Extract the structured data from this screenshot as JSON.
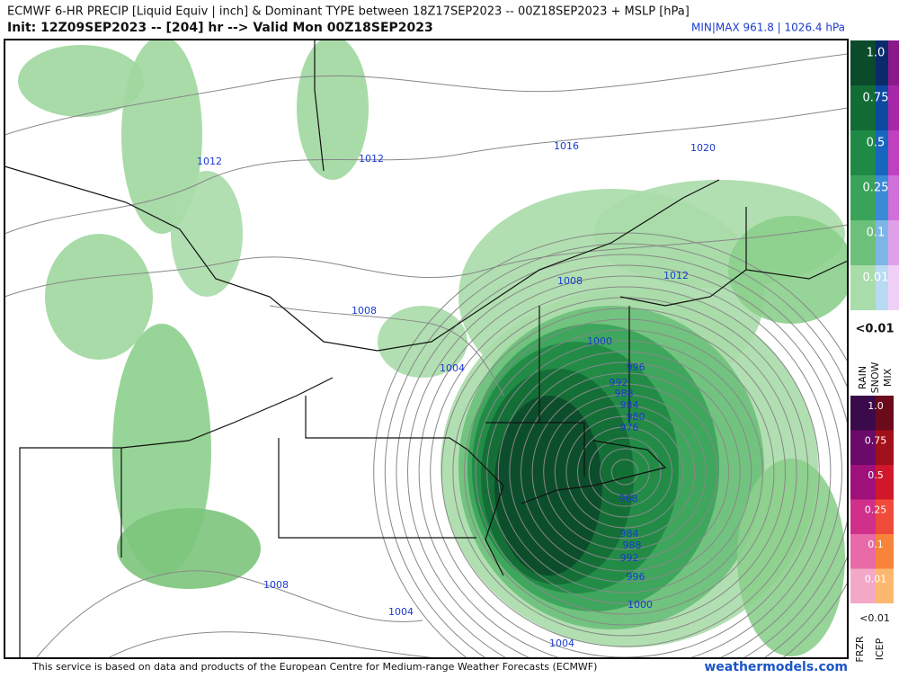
{
  "header": {
    "title": "ECMWF 6-HR PRECIP [Liquid Equiv | inch] & Dominant TYPE between 18Z17SEP2023 -- 00Z18SEP2023 + MSLP [hPa]",
    "init": "Init: 12Z09SEP2023 -- [204] hr --> Valid Mon 00Z18SEP2023",
    "minmax": "MIN|MAX 961.8 | 1026.4 hPa"
  },
  "isobar_labels": [
    "1012",
    "1012",
    "1016",
    "1020",
    "1008",
    "1012",
    "1008",
    "1004",
    "1000",
    "996",
    "992",
    "988",
    "984",
    "980",
    "976",
    "968",
    "984",
    "988",
    "992",
    "996",
    "1000",
    "1008",
    "1004",
    "1004"
  ],
  "legend": {
    "upper": {
      "levels": [
        "1.0",
        "0.75",
        "0.5",
        "0.25",
        "0.1",
        "0.01"
      ],
      "below": "<0.01",
      "types": [
        "RAIN",
        "SNOW",
        "MIX"
      ]
    },
    "lower": {
      "levels": [
        "1.0",
        "0.75",
        "0.5",
        "0.25",
        "0.1",
        "0.01"
      ],
      "below": "<0.01",
      "types": [
        "FRZR",
        "ICEP"
      ]
    }
  },
  "footer": {
    "credit": "This service is based on data and products of the European Centre for Medium-range Weather Forecasts (ECMWF)",
    "site": "weathermodels.com"
  }
}
